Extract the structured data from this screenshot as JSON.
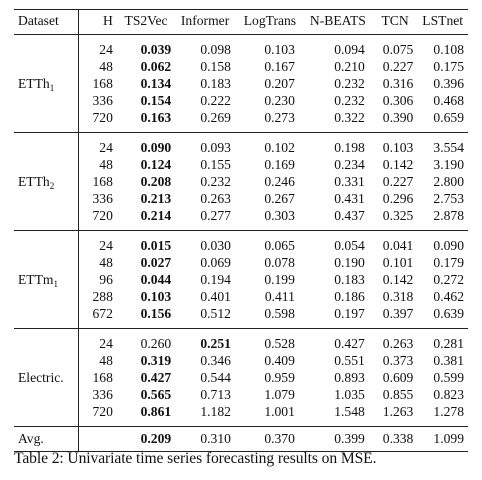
{
  "table": {
    "headers": [
      "Dataset",
      "H",
      "TS2Vec",
      "Informer",
      "LogTrans",
      "N-BEATS",
      "TCN",
      "LSTnet"
    ],
    "groups": [
      {
        "name": "ETTh",
        "sub": "1",
        "rows": [
          {
            "h": "24",
            "v": [
              "0.039",
              "0.098",
              "0.103",
              "0.094",
              "0.075",
              "0.108"
            ],
            "bold": [
              0
            ]
          },
          {
            "h": "48",
            "v": [
              "0.062",
              "0.158",
              "0.167",
              "0.210",
              "0.227",
              "0.175"
            ],
            "bold": [
              0
            ]
          },
          {
            "h": "168",
            "v": [
              "0.134",
              "0.183",
              "0.207",
              "0.232",
              "0.316",
              "0.396"
            ],
            "bold": [
              0
            ]
          },
          {
            "h": "336",
            "v": [
              "0.154",
              "0.222",
              "0.230",
              "0.232",
              "0.306",
              "0.468"
            ],
            "bold": [
              0
            ]
          },
          {
            "h": "720",
            "v": [
              "0.163",
              "0.269",
              "0.273",
              "0.322",
              "0.390",
              "0.659"
            ],
            "bold": [
              0
            ]
          }
        ]
      },
      {
        "name": "ETTh",
        "sub": "2",
        "rows": [
          {
            "h": "24",
            "v": [
              "0.090",
              "0.093",
              "0.102",
              "0.198",
              "0.103",
              "3.554"
            ],
            "bold": [
              0
            ]
          },
          {
            "h": "48",
            "v": [
              "0.124",
              "0.155",
              "0.169",
              "0.234",
              "0.142",
              "3.190"
            ],
            "bold": [
              0
            ]
          },
          {
            "h": "168",
            "v": [
              "0.208",
              "0.232",
              "0.246",
              "0.331",
              "0.227",
              "2.800"
            ],
            "bold": [
              0
            ]
          },
          {
            "h": "336",
            "v": [
              "0.213",
              "0.263",
              "0.267",
              "0.431",
              "0.296",
              "2.753"
            ],
            "bold": [
              0
            ]
          },
          {
            "h": "720",
            "v": [
              "0.214",
              "0.277",
              "0.303",
              "0.437",
              "0.325",
              "2.878"
            ],
            "bold": [
              0
            ]
          }
        ]
      },
      {
        "name": "ETTm",
        "sub": "1",
        "rows": [
          {
            "h": "24",
            "v": [
              "0.015",
              "0.030",
              "0.065",
              "0.054",
              "0.041",
              "0.090"
            ],
            "bold": [
              0
            ]
          },
          {
            "h": "48",
            "v": [
              "0.027",
              "0.069",
              "0.078",
              "0.190",
              "0.101",
              "0.179"
            ],
            "bold": [
              0
            ]
          },
          {
            "h": "96",
            "v": [
              "0.044",
              "0.194",
              "0.199",
              "0.183",
              "0.142",
              "0.272"
            ],
            "bold": [
              0
            ]
          },
          {
            "h": "288",
            "v": [
              "0.103",
              "0.401",
              "0.411",
              "0.186",
              "0.318",
              "0.462"
            ],
            "bold": [
              0
            ]
          },
          {
            "h": "672",
            "v": [
              "0.156",
              "0.512",
              "0.598",
              "0.197",
              "0.397",
              "0.639"
            ],
            "bold": [
              0
            ]
          }
        ]
      },
      {
        "name": "Electric.",
        "sub": "",
        "rows": [
          {
            "h": "24",
            "v": [
              "0.260",
              "0.251",
              "0.528",
              "0.427",
              "0.263",
              "0.281"
            ],
            "bold": [
              1
            ]
          },
          {
            "h": "48",
            "v": [
              "0.319",
              "0.346",
              "0.409",
              "0.551",
              "0.373",
              "0.381"
            ],
            "bold": [
              0
            ]
          },
          {
            "h": "168",
            "v": [
              "0.427",
              "0.544",
              "0.959",
              "0.893",
              "0.609",
              "0.599"
            ],
            "bold": [
              0
            ]
          },
          {
            "h": "336",
            "v": [
              "0.565",
              "0.713",
              "1.079",
              "1.035",
              "0.855",
              "0.823"
            ],
            "bold": [
              0
            ]
          },
          {
            "h": "720",
            "v": [
              "0.861",
              "1.182",
              "1.001",
              "1.548",
              "1.263",
              "1.278"
            ],
            "bold": [
              0
            ]
          }
        ]
      }
    ],
    "avg": {
      "label": "Avg.",
      "v": [
        "0.209",
        "0.310",
        "0.370",
        "0.399",
        "0.338",
        "1.099"
      ],
      "bold": [
        0
      ]
    }
  },
  "caption": "Table 2: Univariate time series forecasting results on MSE."
}
